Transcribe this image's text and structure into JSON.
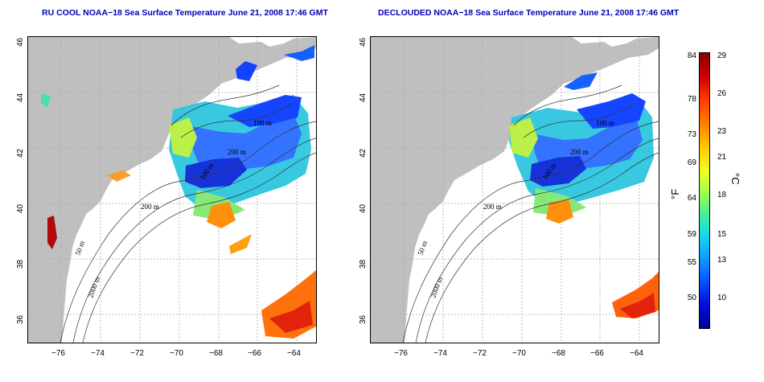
{
  "panels": [
    {
      "title": "RU COOL NOAA−18 Sea Surface Temperature June 21, 2008 17:46 GMT",
      "contours": [
        "50 m",
        "100 m",
        "200 m",
        "2000 m",
        "100 m",
        "200 m"
      ]
    },
    {
      "title": "DECLOUDED NOAA−18 Sea Surface Temperature June 21, 2008 17:46 GMT",
      "contours": [
        "50 m",
        "100 m",
        "200 m",
        "2000 m",
        "100 m",
        "200 m"
      ]
    }
  ],
  "axes": {
    "x_ticks": [
      "−76",
      "−74",
      "−72",
      "−70",
      "−68",
      "−66",
      "−64"
    ],
    "y_ticks": [
      "36",
      "38",
      "40",
      "42",
      "44",
      "46"
    ],
    "x_range": [
      -77.2,
      -63
    ],
    "y_range": [
      35,
      46
    ]
  },
  "colorbar": {
    "f_unit": "°F",
    "c_unit": "°C",
    "f_ticks": [
      "84",
      "78",
      "73",
      "69",
      "64",
      "59",
      "55",
      "50"
    ],
    "c_ticks": [
      "29",
      "26",
      "23",
      "21",
      "18",
      "15",
      "13",
      "10"
    ]
  },
  "colors": {
    "land": "#bfbfbf",
    "grid": "#aaaaaa",
    "title": "#0000b8",
    "warm": "#d40000",
    "cool": "#0a3cff"
  }
}
